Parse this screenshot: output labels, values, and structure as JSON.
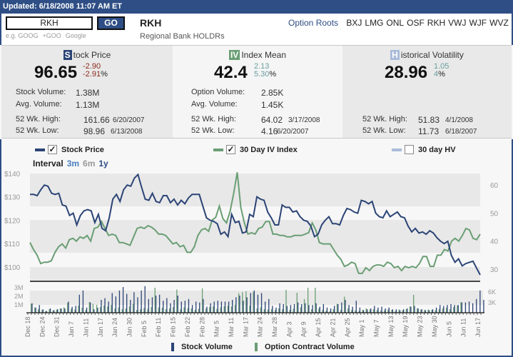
{
  "header": {
    "updated": "Updated: 6/18/2008 11:07 AM ET"
  },
  "search": {
    "value": "RKH",
    "go_label": "GO",
    "hints": [
      "e.g. GOOG",
      "+GOO",
      "Google"
    ]
  },
  "ticker": {
    "symbol": "RKH",
    "name": "Regional Bank HOLDRs"
  },
  "option_roots": {
    "label": "Option Roots",
    "roots": [
      "BXJ",
      "LMG",
      "ONL",
      "OSF",
      "RKH",
      "VWJ",
      "WJF",
      "WVZ"
    ]
  },
  "colors": {
    "stock": "#2b4476",
    "iv": "#6a9e74",
    "hv": "#a9bbd9",
    "brand": "#2e4e85"
  },
  "stock": {
    "badge": "S",
    "title": "tock Price",
    "price": "96.65",
    "change": "-2.90",
    "change_pct": "-2.91",
    "pct_sign": "%",
    "rows": [
      {
        "k": "Stock Volume:",
        "v": "1.38M"
      },
      {
        "k": "Avg. Volume:",
        "v": "1.13M"
      }
    ],
    "high": {
      "k": "52 Wk. High:",
      "v": "161.66",
      "d": "6/20/2007"
    },
    "low": {
      "k": "52 Wk. Low:",
      "v": "98.96",
      "d": "6/13/2008"
    }
  },
  "iv": {
    "badge": "IV",
    "title": "Index Mean",
    "value": "42.4",
    "change": "2.13",
    "change_pct": "5.30",
    "pct_sign": "%",
    "rows": [
      {
        "k": "Option Volume:",
        "v": "2.85K"
      },
      {
        "k": "Avg. Volume:",
        "v": "1.45K"
      }
    ],
    "high": {
      "k": "52 Wk. High:",
      "v": "64.02",
      "d": "3/17/2008"
    },
    "low": {
      "k": "52 Wk. Low:",
      "v": "4.16",
      "d": "6/20/2007"
    }
  },
  "hv": {
    "badge": "H",
    "title": "istorical Volatility",
    "value": "28.96",
    "change": "1.05",
    "change_pct": "4",
    "pct_sign": "%",
    "high": {
      "k": "52 Wk. High:",
      "v": "51.83",
      "d": "4/1/2008"
    },
    "low": {
      "k": "52 Wk. Low:",
      "v": "11.73",
      "d": "6/18/2007"
    }
  },
  "legend": {
    "stock": "Stock Price",
    "iv": "30 Day IV Index",
    "hv": "30 day HV",
    "check": "✓"
  },
  "interval": {
    "label": "Interval",
    "options": [
      "3m",
      "6m",
      "1y"
    ]
  },
  "chart_data": {
    "type": "line",
    "x_labels": [
      "Dec 18",
      "Dec 24",
      "Dec 31",
      "Jan 7",
      "Jan 11",
      "Jan 17",
      "Jan 24",
      "Jan 30",
      "Feb 5",
      "Feb 11",
      "Feb 15",
      "Feb 22",
      "Feb 28",
      "Mar 5",
      "Mar 11",
      "Mar 17",
      "Mar 24",
      "Mar 28",
      "Apr 3",
      "Apr 9",
      "Apr 15",
      "Apr 21",
      "Apr 25",
      "May 1",
      "May 7",
      "May 13",
      "May 19",
      "May 23",
      "May 30",
      "Jun 5",
      "Jun 11",
      "Jun 17"
    ],
    "left_ticks": [
      "$140",
      "$130",
      "$120",
      "$110",
      "$100"
    ],
    "left_range": [
      94,
      140
    ],
    "right_ticks": [
      "60",
      "50",
      "40",
      "30"
    ],
    "right_range": [
      25,
      64.5
    ],
    "stock_price": [
      131,
      131,
      130.5,
      133,
      135,
      134.5,
      131.5,
      131,
      131.5,
      126.5,
      126,
      122,
      123,
      118,
      122,
      124,
      124.5,
      124,
      119,
      122.5,
      116.5,
      115.5,
      121,
      129,
      131,
      128,
      133,
      135,
      134.5,
      138,
      139.5,
      134,
      129,
      128.5,
      131.5,
      128,
      127.5,
      130.5,
      130.5,
      127.5,
      129,
      126.5,
      128.5,
      127,
      129.5,
      131,
      131,
      131,
      126,
      121,
      120,
      119.5,
      118.5,
      114,
      115,
      113,
      122.5,
      119,
      119.5,
      114.5,
      115,
      122.5,
      121.5,
      130,
      129,
      128.5,
      123.5,
      121,
      118,
      118,
      126.5,
      125.5,
      125.5,
      123.5,
      124,
      121.5,
      120,
      119.5,
      117.5,
      113,
      114,
      118,
      120,
      121.5,
      118.5,
      118.5,
      118,
      122,
      125,
      124.5,
      123.5,
      123,
      128.5,
      128,
      127,
      128,
      123,
      121.5,
      121,
      124,
      121.5,
      122.5,
      123.5,
      121.5,
      121,
      117.5,
      115,
      116.5,
      114.5,
      115,
      114,
      115.5,
      114.5,
      112.5,
      111,
      110,
      111,
      105,
      102,
      103.5,
      100.5,
      101.5,
      102,
      102.5,
      99.5,
      96.65
    ],
    "iv_index": [
      39.5,
      37,
      35,
      32,
      32.5,
      32.5,
      33,
      36,
      38,
      39,
      37.5,
      40.5,
      41,
      40,
      41.5,
      41,
      42,
      40,
      44.5,
      45,
      47,
      44.5,
      42,
      42.5,
      42,
      39.5,
      39.5,
      39,
      38.5,
      41.5,
      44.5,
      45,
      44.5,
      45.5,
      45,
      44,
      42.5,
      42.5,
      42,
      40.5,
      39,
      39.5,
      38,
      38.5,
      36,
      36,
      38,
      42,
      44,
      44.5,
      43.5,
      47.5,
      48.5,
      52.5,
      48,
      46.5,
      50.5,
      57,
      64.5,
      52,
      46.5,
      42.5,
      43,
      42.5,
      44.5,
      45,
      47,
      47,
      42.5,
      42.5,
      42,
      42,
      41.5,
      41.5,
      42,
      42,
      42,
      42.5,
      43,
      46.5,
      44,
      39.5,
      39,
      39,
      39,
      37,
      35,
      33.5,
      31,
      31.5,
      32.5,
      32,
      28.5,
      28.5,
      30.5,
      29.5,
      31,
      31.5,
      31.5,
      31,
      32.5,
      32,
      30.5,
      31,
      29.5,
      31,
      30.5,
      31,
      30.5,
      32,
      34.5,
      34.5,
      31,
      31,
      35,
      35,
      37,
      36.5,
      40,
      41,
      40,
      42,
      44.5,
      44,
      41,
      40.5,
      42.5
    ],
    "volume_left_ticks": [
      "3M",
      "2M",
      "1M"
    ],
    "volume_right_ticks": [
      "6K",
      "3K"
    ],
    "stock_volume_m": [
      1.1,
      0.6,
      0.9,
      0.4,
      0.2,
      0.5,
      0.3,
      0.4,
      0.5,
      0.5,
      1.3,
      0.7,
      0.8,
      2.1,
      2.6,
      0.6,
      1.2,
      0.4,
      0.6,
      1.5,
      1.7,
      1.3,
      2.3,
      1.9,
      2.6,
      3.0,
      2.2,
      1.5,
      2.4,
      1.8,
      2.6,
      3.1,
      1.6,
      1.8,
      2.0,
      2.1,
      1.4,
      1.7,
      1.1,
      1.5,
      2.0,
      1.3,
      1.4,
      1.6,
      0.9,
      1.3,
      1.2,
      1.6,
      0.7,
      1.1,
      1.3,
      1.4,
      1.3,
      1.3,
      1.3,
      1.5,
      1.8,
      2.0,
      1.4,
      1.8,
      2.3,
      2.6,
      2.1,
      2.3,
      1.3,
      1.6,
      0.8,
      0.6,
      1.1,
      1.0,
      0.8,
      0.9,
      1.0,
      1.2,
      1.0,
      1.1,
      0.9,
      0.9,
      1.1,
      0.7,
      1.0,
      0.6,
      0.5,
      0.8,
      1.0,
      1.2,
      1.5,
      0.9,
      0.7,
      1.4,
      0.6,
      0.3,
      0.4,
      0.5,
      0.8,
      0.6,
      0.7,
      0.5,
      0.6,
      0.4,
      0.4,
      0.3,
      0.4,
      0.5,
      0.7,
      0.8,
      0.5,
      0.4,
      0.3,
      0.3,
      0.4,
      0.6,
      0.9,
      0.8,
      0.9,
      1.0,
      0.9,
      0.9,
      1.2,
      1.2,
      1.3,
      1.1,
      1.6,
      2.6,
      1.5
    ],
    "option_volume_k": [
      2.5,
      1.5,
      1.0,
      0.8,
      0.5,
      1.0,
      0.6,
      0.9,
      1.2,
      1.5,
      2.8,
      1.1,
      0.9,
      2.0,
      1.4,
      0.8,
      3.0,
      2.5,
      2.2,
      1.6,
      2.0,
      1.8,
      2.2,
      1.2,
      1.5,
      1.0,
      1.2,
      1.8,
      2.5,
      0.8,
      1.0,
      1.3,
      1.1,
      1.6,
      7.0,
      1.5,
      1.4,
      1.0,
      1.2,
      1.6,
      6.5,
      1.0,
      1.5,
      1.3,
      1.2,
      0.8,
      1.1,
      6.8,
      1.2,
      1.6,
      1.8,
      1.1,
      1.5,
      1.8,
      2.0,
      1.8,
      2.2,
      5.5,
      5.8,
      6.0,
      2.0,
      5.8,
      1.2,
      1.5,
      1.0,
      0.9,
      1.0,
      0.8,
      1.2,
      1.0,
      6.4,
      0.8,
      1.1,
      5.6,
      1.5,
      3.8,
      7.0,
      1.0,
      7.0,
      1.2,
      0.8,
      0.6,
      0.4,
      1.0,
      2.5,
      0.8,
      4.5,
      1.2,
      0.8,
      0.7,
      0.5,
      0.8,
      1.2,
      0.9,
      1.0,
      0.8,
      0.6,
      0.7,
      0.9,
      0.8,
      0.5,
      0.9,
      0.7,
      1.0,
      1.8,
      5.0,
      1.2,
      0.9,
      0.8,
      0.9,
      0.8,
      0.7,
      1.0,
      1.2,
      1.4,
      1.0,
      1.6,
      2.0,
      3.0
    ]
  },
  "bottom_legend": {
    "stock_volume": "Stock Volume",
    "option_volume": "Option Contract Volume"
  }
}
